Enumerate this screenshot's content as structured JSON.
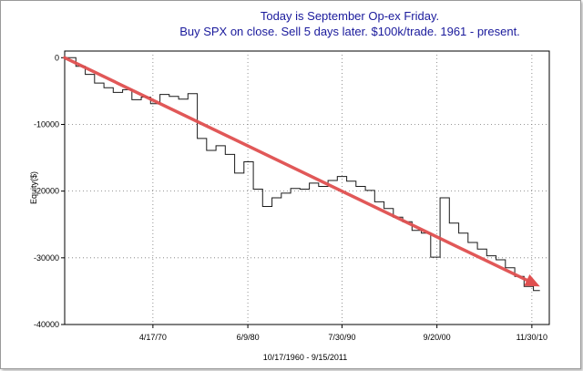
{
  "chart_data": {
    "type": "line",
    "title": [
      "Today is September Op-ex Friday.",
      "Buy SPX on close. Sell 5 days later. $100k/trade. 1961 - present."
    ],
    "xlabel": "10/17/1960 - 9/15/2011",
    "ylabel": "Equity($)",
    "x_ticks": [
      "4/17/70",
      "6/9/80",
      "7/30/90",
      "9/20/00",
      "11/30/10"
    ],
    "y_ticks": [
      0,
      -10000,
      -20000,
      -30000,
      -40000
    ],
    "y_tick_labels": [
      "0",
      "-10000",
      "-20000",
      "-30000",
      "-40000"
    ],
    "ylim": [
      -40000,
      1000
    ],
    "xlim_years": [
      1960.8,
      2012.7
    ],
    "grid": true,
    "series": [
      {
        "style": "step",
        "points": [
          [
            1961.0,
            0
          ],
          [
            1962.0,
            -1300
          ],
          [
            1963.0,
            -2500
          ],
          [
            1964.0,
            -3800
          ],
          [
            1965.0,
            -4500
          ],
          [
            1966.0,
            -5200
          ],
          [
            1967.0,
            -4800
          ],
          [
            1968.0,
            -6300
          ],
          [
            1969.0,
            -5900
          ],
          [
            1970.0,
            -6900
          ],
          [
            1971.0,
            -5500
          ],
          [
            1972.0,
            -5800
          ],
          [
            1973.0,
            -6200
          ],
          [
            1974.0,
            -5400
          ],
          [
            1975.0,
            -12100
          ],
          [
            1976.0,
            -13900
          ],
          [
            1977.0,
            -13200
          ],
          [
            1978.0,
            -14500
          ],
          [
            1979.0,
            -17300
          ],
          [
            1980.0,
            -15600
          ],
          [
            1981.0,
            -19700
          ],
          [
            1982.0,
            -22300
          ],
          [
            1983.0,
            -21000
          ],
          [
            1984.0,
            -20300
          ],
          [
            1985.0,
            -19600
          ],
          [
            1986.0,
            -19700
          ],
          [
            1987.0,
            -18800
          ],
          [
            1988.0,
            -19300
          ],
          [
            1989.0,
            -18400
          ],
          [
            1990.0,
            -17800
          ],
          [
            1991.0,
            -18500
          ],
          [
            1992.0,
            -19300
          ],
          [
            1993.0,
            -19900
          ],
          [
            1994.0,
            -21600
          ],
          [
            1995.0,
            -22600
          ],
          [
            1996.0,
            -23900
          ],
          [
            1997.0,
            -24600
          ],
          [
            1998.0,
            -25900
          ],
          [
            1999.0,
            -26300
          ],
          [
            2000.0,
            -29900
          ],
          [
            2001.0,
            -21000
          ],
          [
            2002.0,
            -24800
          ],
          [
            2003.0,
            -26300
          ],
          [
            2004.0,
            -27700
          ],
          [
            2005.0,
            -28700
          ],
          [
            2006.0,
            -29700
          ],
          [
            2007.0,
            -30300
          ],
          [
            2008.0,
            -31500
          ],
          [
            2009.0,
            -32800
          ],
          [
            2010.0,
            -34300
          ],
          [
            2011.0,
            -34900
          ]
        ]
      }
    ],
    "arrow": {
      "from": [
        1960.8,
        0
      ],
      "to": [
        2011.7,
        -34300
      ],
      "color": "#e05050"
    }
  }
}
